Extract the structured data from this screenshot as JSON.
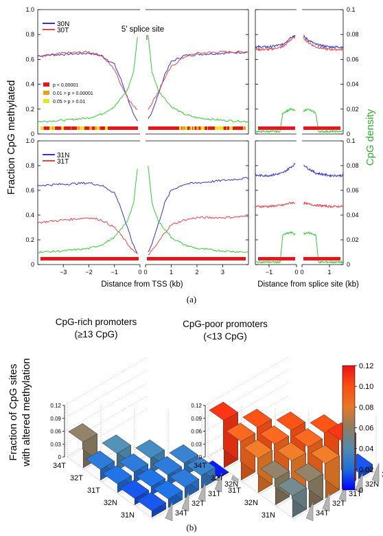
{
  "captions": {
    "a": "(a)",
    "b": "(b)"
  },
  "panel_a": {
    "ylabel_left": "Fraction CpG methylated",
    "ylabel_right": "CpG density",
    "xlabel_left": "Distance from TSS (kb)",
    "xlabel_right": "Distance from splice site (kb)",
    "splice_annotation": "5′ splice site",
    "significance_legend": [
      {
        "label": "p < 0.00001",
        "color": "#e8161b"
      },
      {
        "label": "0.01 > p > 0.00001",
        "color": "#f09a1c"
      },
      {
        "label": "0.05 > p > 0.01",
        "color": "#e6e61e"
      }
    ],
    "yticks_left": [
      "0",
      "0.2",
      "0.4",
      "0.6",
      "0.8",
      "1.0"
    ],
    "yticks_right": [
      "0",
      "0.02",
      "0.04",
      "0.06",
      "0.08",
      "0.1"
    ],
    "xticks_tss": [
      "−3",
      "−2",
      "−1",
      "0",
      "0",
      "1",
      "2",
      "3"
    ],
    "xticks_splice": [
      "−1",
      "0",
      "0",
      "1"
    ],
    "colors": {
      "normal": "#3333cc",
      "tumor": "#e8454a",
      "cpg": "#33cc33"
    }
  },
  "panel_b": {
    "ylabel_line1": "Fraction of CpG sites",
    "ylabel_line2": "with altered methylation",
    "rich_title_line1": "CpG-rich promoters",
    "rich_title_line2": "(≥13 CpG)",
    "poor_title_line1": "CpG-poor promoters",
    "poor_title_line2": "(<13 CpG)",
    "zticks": [
      "0",
      "0.03",
      "0.06",
      "0.09",
      "0.12"
    ],
    "colorbar_ticks": [
      "0",
      "0.02",
      "0.04",
      "0.06",
      "0.08",
      "0.10",
      "0.12"
    ]
  },
  "chart_data": [
    {
      "type": "line",
      "panel": "30N vs 30T",
      "x_region": "Distance from TSS (kb)",
      "xlim": [
        -4,
        4
      ],
      "ylim": [
        0,
        1.0
      ],
      "y2lim": [
        0,
        0.1
      ],
      "series": [
        {
          "name": "30N",
          "x": [
            -4,
            -3,
            -2,
            -1.5,
            -1,
            -0.75,
            -0.5,
            -0.25,
            -0.1,
            0.1,
            0.25,
            0.5,
            0.75,
            1,
            1.5,
            2,
            3,
            4
          ],
          "values": [
            0.63,
            0.64,
            0.65,
            0.63,
            0.56,
            0.44,
            0.3,
            0.15,
            0.1,
            0.12,
            0.18,
            0.32,
            0.48,
            0.58,
            0.63,
            0.64,
            0.65,
            0.66
          ]
        },
        {
          "name": "30T",
          "x": [
            -4,
            -3,
            -2,
            -1.5,
            -1,
            -0.75,
            -0.5,
            -0.25,
            -0.1,
            0.1,
            0.25,
            0.5,
            0.75,
            1,
            1.5,
            2,
            3,
            4
          ],
          "values": [
            0.62,
            0.65,
            0.66,
            0.63,
            0.52,
            0.4,
            0.3,
            0.22,
            0.2,
            0.2,
            0.25,
            0.34,
            0.45,
            0.54,
            0.62,
            0.65,
            0.66,
            0.66
          ]
        },
        {
          "name": "CpG density",
          "axis": "right",
          "x": [
            -4,
            -3,
            -2,
            -1.5,
            -1,
            -0.5,
            -0.25,
            -0.1,
            0.1,
            0.25,
            0.5,
            1,
            1.5,
            2,
            3,
            4
          ],
          "values": [
            0.01,
            0.011,
            0.013,
            0.016,
            0.022,
            0.035,
            0.05,
            0.078,
            0.08,
            0.05,
            0.035,
            0.022,
            0.016,
            0.013,
            0.011,
            0.01
          ]
        }
      ]
    },
    {
      "type": "line",
      "panel": "30N vs 30T splice",
      "x_region": "Distance from splice site (kb)",
      "xlim": [
        -1.5,
        1.5
      ],
      "ylim": [
        0,
        1.0
      ],
      "series": [
        {
          "name": "30N",
          "x": [
            -1.5,
            -1,
            -0.5,
            -0.2,
            0,
            0.2,
            0.5,
            1,
            1.5
          ],
          "values": [
            0.7,
            0.7,
            0.72,
            0.78,
            0.8,
            0.76,
            0.72,
            0.7,
            0.7
          ]
        },
        {
          "name": "30T",
          "x": [
            -1.5,
            -1,
            -0.5,
            -0.2,
            0,
            0.2,
            0.5,
            1,
            1.5
          ],
          "values": [
            0.68,
            0.68,
            0.7,
            0.76,
            0.79,
            0.74,
            0.7,
            0.68,
            0.68
          ]
        },
        {
          "name": "CpG density",
          "axis": "right",
          "x": [
            -1.5,
            -1,
            -0.6,
            -0.5,
            -0.2,
            0,
            0.2,
            0.5,
            0.6,
            1,
            1.5
          ],
          "values": [
            0.002,
            0.002,
            0.002,
            0.017,
            0.02,
            0.018,
            0.02,
            0.017,
            0.002,
            0.002,
            0.002
          ]
        }
      ]
    },
    {
      "type": "line",
      "panel": "31N vs 31T",
      "x_region": "Distance from TSS (kb)",
      "xlim": [
        -4,
        4
      ],
      "ylim": [
        0,
        1.0
      ],
      "y2lim": [
        0,
        0.1
      ],
      "series": [
        {
          "name": "31N",
          "x": [
            -4,
            -3,
            -2,
            -1.5,
            -1,
            -0.75,
            -0.5,
            -0.25,
            -0.1,
            0.1,
            0.25,
            0.5,
            0.75,
            1,
            1.5,
            2,
            3,
            4
          ],
          "values": [
            0.64,
            0.65,
            0.66,
            0.64,
            0.58,
            0.46,
            0.3,
            0.15,
            0.09,
            0.1,
            0.17,
            0.33,
            0.5,
            0.6,
            0.65,
            0.66,
            0.68,
            0.7
          ]
        },
        {
          "name": "31T",
          "x": [
            -4,
            -3,
            -2,
            -1.5,
            -1,
            -0.75,
            -0.5,
            -0.25,
            -0.1,
            0.1,
            0.25,
            0.5,
            0.75,
            1,
            1.5,
            2,
            3,
            4
          ],
          "values": [
            0.34,
            0.36,
            0.38,
            0.36,
            0.3,
            0.24,
            0.17,
            0.11,
            0.08,
            0.08,
            0.11,
            0.18,
            0.26,
            0.32,
            0.36,
            0.38,
            0.38,
            0.39
          ]
        },
        {
          "name": "CpG density",
          "axis": "right",
          "x": [
            -4,
            -3,
            -2,
            -1.5,
            -1,
            -0.5,
            -0.25,
            -0.1,
            0.1,
            0.25,
            0.5,
            1,
            1.5,
            2,
            3,
            4
          ],
          "values": [
            0.01,
            0.011,
            0.013,
            0.016,
            0.022,
            0.035,
            0.05,
            0.077,
            0.08,
            0.05,
            0.035,
            0.022,
            0.016,
            0.013,
            0.011,
            0.01
          ]
        }
      ]
    },
    {
      "type": "line",
      "panel": "31N vs 31T splice",
      "x_region": "Distance from splice site (kb)",
      "xlim": [
        -1.5,
        1.5
      ],
      "ylim": [
        0,
        1.0
      ],
      "series": [
        {
          "name": "31N",
          "x": [
            -1.5,
            -1,
            -0.5,
            -0.2,
            0,
            0.2,
            0.5,
            1,
            1.5
          ],
          "values": [
            0.72,
            0.72,
            0.74,
            0.79,
            0.82,
            0.78,
            0.74,
            0.72,
            0.72
          ]
        },
        {
          "name": "31T",
          "x": [
            -1.5,
            -1,
            -0.5,
            -0.2,
            0,
            0.2,
            0.5,
            1,
            1.5
          ],
          "values": [
            0.47,
            0.47,
            0.48,
            0.5,
            0.5,
            0.49,
            0.48,
            0.47,
            0.47
          ]
        },
        {
          "name": "CpG density",
          "axis": "right",
          "x": [
            -1.5,
            -1,
            -0.6,
            -0.5,
            -0.2,
            0,
            0.2,
            0.5,
            0.6,
            1,
            1.5
          ],
          "values": [
            0.002,
            0.002,
            0.002,
            0.024,
            0.026,
            0.024,
            0.026,
            0.024,
            0.002,
            0.002,
            0.002
          ]
        }
      ]
    },
    {
      "type": "bar3d",
      "title": "CpG-rich promoters (≥13 CpG)",
      "rows": [
        "34T",
        "32T",
        "31T",
        "32N",
        "31N"
      ],
      "cols": [
        "34T",
        "32T",
        "31T",
        "32N",
        "31N"
      ],
      "cells": [
        {
          "row": "34T",
          "col": "34T",
          "value": 0.06
        },
        {
          "row": "32T",
          "col": "34T",
          "value": 0.025
        },
        {
          "row": "32T",
          "col": "32T",
          "value": 0.04
        },
        {
          "row": "31T",
          "col": "34T",
          "value": 0.02
        },
        {
          "row": "31T",
          "col": "32T",
          "value": 0.025
        },
        {
          "row": "31T",
          "col": "31T",
          "value": 0.035
        },
        {
          "row": "32N",
          "col": "34T",
          "value": 0.015
        },
        {
          "row": "32N",
          "col": "32T",
          "value": 0.02
        },
        {
          "row": "32N",
          "col": "31T",
          "value": 0.025
        },
        {
          "row": "32N",
          "col": "32N",
          "value": 0.03
        },
        {
          "row": "31N",
          "col": "34T",
          "value": 0.015
        },
        {
          "row": "31N",
          "col": "32T",
          "value": 0.02
        },
        {
          "row": "31N",
          "col": "31T",
          "value": 0.025
        },
        {
          "row": "31N",
          "col": "32N",
          "value": 0.03
        },
        {
          "row": "31N",
          "col": "31N",
          "value": 0.005
        }
      ],
      "zlim": [
        0,
        0.12
      ]
    },
    {
      "type": "bar3d",
      "title": "CpG-poor promoters (<13 CpG)",
      "rows": [
        "34T",
        "32T",
        "31T",
        "32N",
        "31N"
      ],
      "cols": [
        "34T",
        "32T",
        "31T",
        "32N",
        "31N"
      ],
      "cells": [
        {
          "row": "34T",
          "col": "34T",
          "value": 0.11
        },
        {
          "row": "32T",
          "col": "34T",
          "value": 0.09
        },
        {
          "row": "32T",
          "col": "32T",
          "value": 0.1
        },
        {
          "row": "31T",
          "col": "34T",
          "value": 0.08
        },
        {
          "row": "31T",
          "col": "32T",
          "value": 0.09
        },
        {
          "row": "31T",
          "col": "31T",
          "value": 0.1
        },
        {
          "row": "32N",
          "col": "34T",
          "value": 0.06
        },
        {
          "row": "32N",
          "col": "32T",
          "value": 0.08
        },
        {
          "row": "32N",
          "col": "31T",
          "value": 0.09
        },
        {
          "row": "32N",
          "col": "32N",
          "value": 0.1
        },
        {
          "row": "31N",
          "col": "34T",
          "value": 0.05
        },
        {
          "row": "31N",
          "col": "32T",
          "value": 0.06
        },
        {
          "row": "31N",
          "col": "31T",
          "value": 0.08
        },
        {
          "row": "31N",
          "col": "32N",
          "value": 0.11
        },
        {
          "row": "31N",
          "col": "31N",
          "value": 0.015
        }
      ],
      "zlim": [
        0,
        0.12
      ]
    }
  ]
}
